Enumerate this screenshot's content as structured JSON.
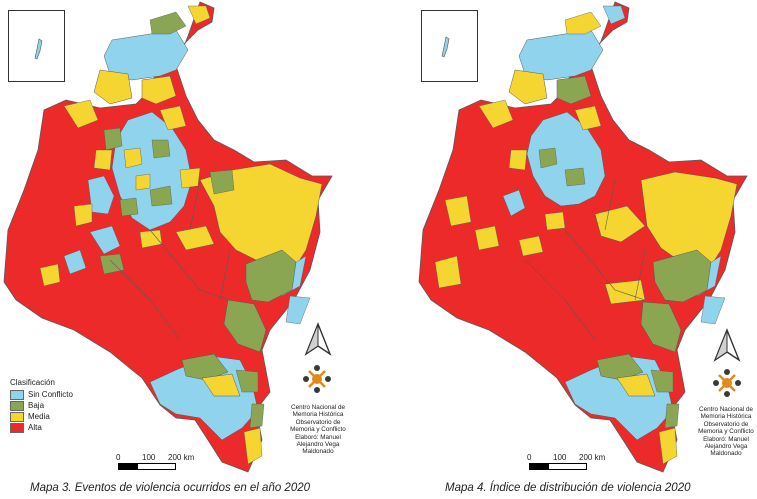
{
  "legend": {
    "title": "Clasificación",
    "items": [
      {
        "label": "Sin Conflicto",
        "color": "#8fd3ec"
      },
      {
        "label": "Baja",
        "color": "#8aa653"
      },
      {
        "label": "Media",
        "color": "#f5d52f"
      },
      {
        "label": "Alta",
        "color": "#ec2a2a"
      }
    ]
  },
  "scale": {
    "labels": [
      "0",
      "100",
      "200 km"
    ]
  },
  "credits": {
    "left": [
      "Centro Nacional de",
      "Memoria Histórica",
      "Observatorio de",
      "Memoria y Conflicto",
      "Elaboró: Manuel",
      "Alejandro Vega",
      "Maldonado"
    ],
    "right": [
      "Centro Nacional de",
      "Memoria Histórica",
      "Observatorio de",
      "Memoria y Conflicto",
      "Elaboró: Manuel",
      "Alejandro Vega",
      "Maldonado"
    ]
  },
  "maps": {
    "left": {
      "caption": "Mapa 3. Eventos de violencia ocurridos en el año 2020"
    },
    "right": {
      "caption": "Mapa 4. Índice de distribución de violencia 2020"
    }
  }
}
